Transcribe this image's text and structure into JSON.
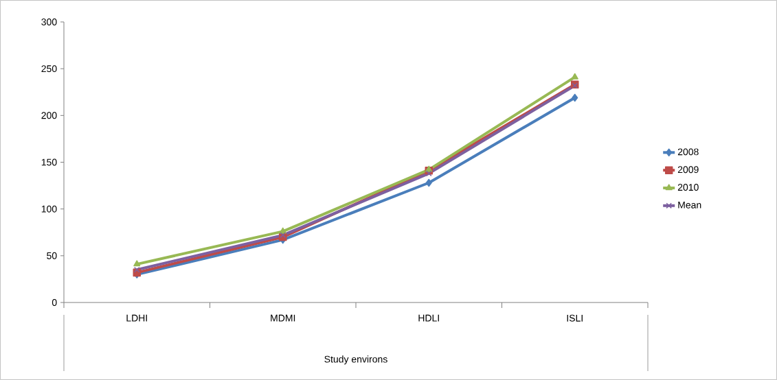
{
  "chart_data": {
    "type": "line",
    "xlabel": "Study environs",
    "categories": [
      "LDHI",
      "MDMI",
      "HDLI",
      "ISLI"
    ],
    "series": [
      {
        "name": "2008",
        "color": "#4a7ebb",
        "marker": "diamond",
        "values": [
          30,
          67,
          128,
          219
        ]
      },
      {
        "name": "2009",
        "color": "#be4b48",
        "marker": "square",
        "values": [
          32,
          70,
          141,
          233
        ]
      },
      {
        "name": "2010",
        "color": "#98b954",
        "marker": "triangle",
        "values": [
          41,
          76,
          142,
          241
        ]
      },
      {
        "name": "Mean",
        "color": "#7d60a0",
        "marker": "cross",
        "values": [
          35,
          72,
          138,
          232
        ]
      }
    ],
    "ylim": [
      0,
      300
    ],
    "yticks": [
      0,
      50,
      100,
      150,
      200,
      250,
      300
    ],
    "grid": false,
    "legend": "right",
    "line_style": "solid"
  }
}
